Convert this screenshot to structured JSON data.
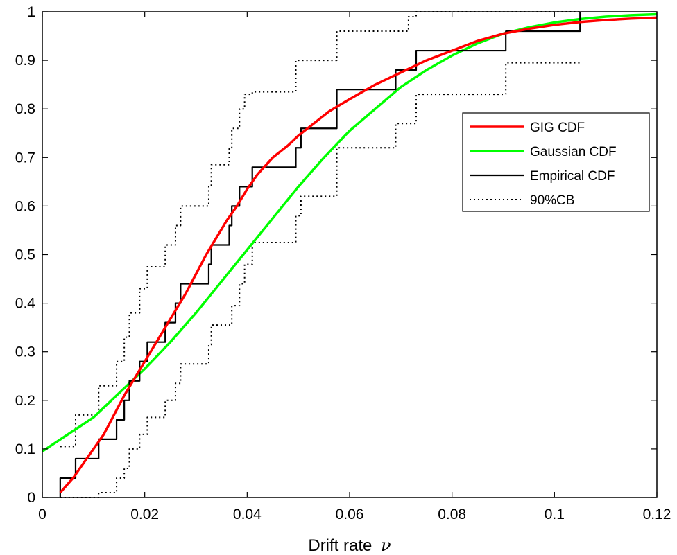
{
  "chart_data": {
    "type": "line",
    "xlabel": "Drift rate",
    "xlabel_symbol": "ν",
    "ylabel": "",
    "xlim": [
      0,
      0.12
    ],
    "ylim": [
      0,
      1
    ],
    "x_ticks": [
      0,
      0.02,
      0.04,
      0.06,
      0.08,
      0.1,
      0.12
    ],
    "x_tick_labels": [
      "0",
      "0.02",
      "0.04",
      "0.06",
      "0.08",
      "0.1",
      "0.12"
    ],
    "y_ticks": [
      0,
      0.1,
      0.2,
      0.3,
      0.4,
      0.5,
      0.6,
      0.7,
      0.8,
      0.9,
      1
    ],
    "y_tick_labels": [
      "0",
      "0.1",
      "0.2",
      "0.3",
      "0.4",
      "0.5",
      "0.6",
      "0.7",
      "0.8",
      "0.9",
      "1"
    ],
    "grid": false,
    "legend_position": "right",
    "series": [
      {
        "name": "GIG CDF",
        "style": "solid",
        "color": "#ff0000",
        "x": [
          0.0035,
          0.006,
          0.008,
          0.01,
          0.012,
          0.014,
          0.016,
          0.018,
          0.02,
          0.022,
          0.024,
          0.026,
          0.028,
          0.03,
          0.032,
          0.034,
          0.036,
          0.038,
          0.04,
          0.042,
          0.045,
          0.048,
          0.05,
          0.053,
          0.056,
          0.06,
          0.065,
          0.07,
          0.075,
          0.08,
          0.085,
          0.09,
          0.095,
          0.1,
          0.105,
          0.11,
          0.115,
          0.12
        ],
        "y": [
          0.01,
          0.04,
          0.07,
          0.1,
          0.13,
          0.17,
          0.21,
          0.245,
          0.28,
          0.315,
          0.35,
          0.385,
          0.42,
          0.46,
          0.5,
          0.535,
          0.57,
          0.6,
          0.635,
          0.665,
          0.7,
          0.725,
          0.745,
          0.77,
          0.795,
          0.82,
          0.85,
          0.875,
          0.9,
          0.92,
          0.94,
          0.955,
          0.965,
          0.973,
          0.979,
          0.983,
          0.986,
          0.988
        ]
      },
      {
        "name": "Gaussian CDF",
        "style": "solid",
        "color": "#00ff00",
        "x": [
          0,
          0.005,
          0.01,
          0.015,
          0.02,
          0.025,
          0.03,
          0.035,
          0.04,
          0.045,
          0.05,
          0.055,
          0.06,
          0.065,
          0.07,
          0.075,
          0.08,
          0.085,
          0.09,
          0.095,
          0.1,
          0.105,
          0.11,
          0.115,
          0.12
        ],
        "y": [
          0.095,
          0.13,
          0.165,
          0.215,
          0.265,
          0.32,
          0.38,
          0.445,
          0.51,
          0.575,
          0.64,
          0.7,
          0.755,
          0.8,
          0.845,
          0.88,
          0.91,
          0.935,
          0.955,
          0.968,
          0.978,
          0.985,
          0.99,
          0.993,
          0.995
        ]
      },
      {
        "name": "Empirical CDF",
        "style": "step",
        "color": "#000000",
        "x": [
          0.0035,
          0.0035,
          0.0065,
          0.0065,
          0.011,
          0.011,
          0.0145,
          0.0145,
          0.016,
          0.016,
          0.017,
          0.017,
          0.0175,
          0.0175,
          0.019,
          0.019,
          0.0205,
          0.0205,
          0.0215,
          0.0215,
          0.024,
          0.024,
          0.026,
          0.026,
          0.027,
          0.027,
          0.028,
          0.028,
          0.0325,
          0.0325,
          0.033,
          0.033,
          0.0365,
          0.0365,
          0.037,
          0.037,
          0.0385,
          0.0385,
          0.0395,
          0.0395,
          0.041,
          0.041,
          0.0495,
          0.0495,
          0.0505,
          0.0505,
          0.0575,
          0.0575,
          0.069,
          0.069,
          0.073,
          0.073,
          0.0905,
          0.0905,
          0.105,
          0.105
        ],
        "y": [
          0,
          0.04,
          0.04,
          0.08,
          0.08,
          0.12,
          0.12,
          0.16,
          0.16,
          0.2,
          0.2,
          0.24,
          0.24,
          0.24,
          0.24,
          0.28,
          0.28,
          0.32,
          0.32,
          0.32,
          0.32,
          0.36,
          0.36,
          0.4,
          0.4,
          0.44,
          0.44,
          0.44,
          0.44,
          0.48,
          0.48,
          0.52,
          0.52,
          0.56,
          0.56,
          0.6,
          0.6,
          0.64,
          0.64,
          0.64,
          0.64,
          0.68,
          0.68,
          0.72,
          0.72,
          0.76,
          0.76,
          0.84,
          0.84,
          0.88,
          0.88,
          0.92,
          0.92,
          0.96,
          0.96,
          1
        ]
      },
      {
        "name": "90%CB",
        "style": "dotted",
        "color": "#000000",
        "x": [
          0.0035,
          0.0065,
          0.0065,
          0.011,
          0.011,
          0.0145,
          0.0145,
          0.016,
          0.016,
          0.017,
          0.017,
          0.0175,
          0.0175,
          0.019,
          0.019,
          0.0205,
          0.0205,
          0.0215,
          0.0215,
          0.024,
          0.024,
          0.026,
          0.026,
          0.027,
          0.027,
          0.028,
          0.028,
          0.0325,
          0.0325,
          0.033,
          0.033,
          0.0365,
          0.0365,
          0.037,
          0.037,
          0.0385,
          0.0385,
          0.0395,
          0.0395,
          0.041,
          0.041,
          0.0495,
          0.0495,
          0.0505,
          0.0505,
          0.0575,
          0.0575,
          0.069,
          0.069,
          0.0715,
          0.0715,
          0.073,
          0.073,
          0.0755,
          0.0755,
          0.105
        ],
        "y": [
          0.105,
          0.105,
          0.17,
          0.17,
          0.23,
          0.23,
          0.28,
          0.28,
          0.33,
          0.33,
          0.38,
          0.38,
          0.38,
          0.38,
          0.43,
          0.43,
          0.475,
          0.475,
          0.475,
          0.475,
          0.52,
          0.52,
          0.56,
          0.56,
          0.6,
          0.6,
          0.6,
          0.6,
          0.64,
          0.64,
          0.685,
          0.685,
          0.72,
          0.72,
          0.76,
          0.76,
          0.8,
          0.8,
          0.83,
          0.83,
          0.835,
          0.835,
          0.9,
          0.9,
          0.9,
          0.9,
          0.96,
          0.96,
          0.96,
          0.96,
          0.99,
          0.99,
          1.0,
          1.0,
          1.0,
          1.0
        ],
        "upper": true
      },
      {
        "name": "90%CB lower",
        "style": "dotted",
        "color": "#000000",
        "legend": false,
        "x": [
          0.0035,
          0.011,
          0.011,
          0.0145,
          0.0145,
          0.016,
          0.016,
          0.017,
          0.017,
          0.0175,
          0.0175,
          0.019,
          0.019,
          0.0205,
          0.0205,
          0.0215,
          0.0215,
          0.024,
          0.024,
          0.026,
          0.026,
          0.027,
          0.027,
          0.028,
          0.028,
          0.0325,
          0.0325,
          0.033,
          0.033,
          0.0365,
          0.0365,
          0.037,
          0.037,
          0.0385,
          0.0385,
          0.0395,
          0.0395,
          0.041,
          0.041,
          0.0495,
          0.0495,
          0.0505,
          0.0505,
          0.0575,
          0.0575,
          0.069,
          0.069,
          0.0715,
          0.0715,
          0.073,
          0.073,
          0.0905,
          0.0905,
          0.105
        ],
        "y": [
          0,
          0,
          0.01,
          0.01,
          0.04,
          0.04,
          0.06,
          0.06,
          0.1,
          0.1,
          0.1,
          0.1,
          0.13,
          0.13,
          0.165,
          0.165,
          0.165,
          0.165,
          0.2,
          0.2,
          0.235,
          0.235,
          0.275,
          0.275,
          0.275,
          0.275,
          0.315,
          0.315,
          0.355,
          0.355,
          0.355,
          0.355,
          0.395,
          0.395,
          0.44,
          0.44,
          0.48,
          0.48,
          0.525,
          0.525,
          0.58,
          0.58,
          0.62,
          0.62,
          0.72,
          0.72,
          0.77,
          0.77,
          0.77,
          0.77,
          0.83,
          0.83,
          0.895,
          0.895
        ]
      }
    ],
    "legend": [
      {
        "label": "GIG CDF",
        "color": "#ff0000",
        "style": "solid"
      },
      {
        "label": "Gaussian CDF",
        "color": "#00ff00",
        "style": "solid"
      },
      {
        "label": "Empirical CDF",
        "color": "#000000",
        "style": "solid"
      },
      {
        "label": "90%CB",
        "color": "#000000",
        "style": "dotted"
      }
    ]
  }
}
